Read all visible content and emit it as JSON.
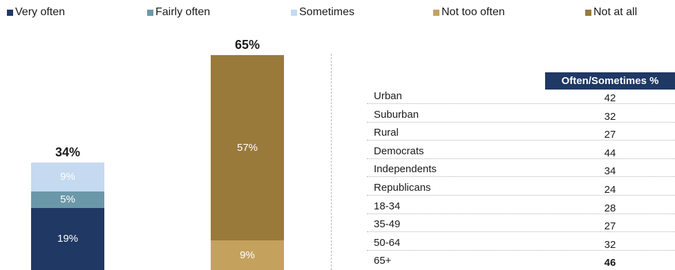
{
  "chart_data": [
    {
      "type": "bar",
      "stacked": true,
      "categories": [
        "",
        ""
      ],
      "series": [
        {
          "name": "Very often",
          "color": "#1f3864",
          "values": [
            19,
            0
          ]
        },
        {
          "name": "Fairly often",
          "color": "#6b98a9",
          "values": [
            5,
            0
          ]
        },
        {
          "name": "Sometimes",
          "color": "#c5d9f0",
          "values": [
            9,
            0
          ]
        },
        {
          "name": "Not too often",
          "color": "#c4a25d",
          "values": [
            0,
            9
          ]
        },
        {
          "name": "Not at all",
          "color": "#9a7a3a",
          "values": [
            0,
            57
          ]
        }
      ],
      "totals": [
        "34%",
        "65%"
      ],
      "segment_labels": [
        [
          "19%",
          "5%",
          "9%"
        ],
        [
          "9%",
          "57%"
        ]
      ],
      "legend_position": "top",
      "grid": false
    },
    {
      "type": "table",
      "columns": [
        "",
        "Often/Sometimes %"
      ],
      "rows": [
        {
          "label": "Urban",
          "value": "42",
          "bold": false
        },
        {
          "label": "Suburban",
          "value": "32",
          "bold": false
        },
        {
          "label": "Rural",
          "value": "27",
          "bold": false
        },
        {
          "label": "Democrats",
          "value": "44",
          "bold": false
        },
        {
          "label": "Independents",
          "value": "34",
          "bold": false
        },
        {
          "label": "Republicans",
          "value": "24",
          "bold": false
        },
        {
          "label": "18-34",
          "value": "28",
          "bold": false
        },
        {
          "label": "35-49",
          "value": "27",
          "bold": false
        },
        {
          "label": "50-64",
          "value": "32",
          "bold": false
        },
        {
          "label": "65+",
          "value": "46",
          "bold": true
        }
      ]
    }
  ]
}
